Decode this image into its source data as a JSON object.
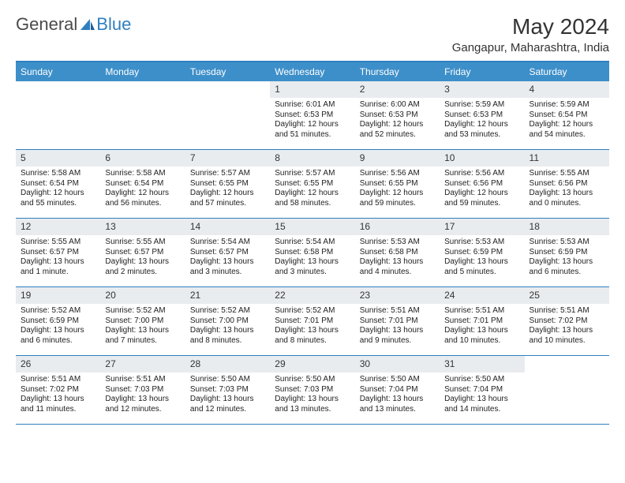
{
  "brand": {
    "general": "General",
    "blue": "Blue",
    "sail_color": "#2f7fbf"
  },
  "header": {
    "month_title": "May 2024",
    "location": "Gangapur, Maharashtra, India"
  },
  "colors": {
    "header_bar": "#3d8fc9",
    "border": "#2f7fbf",
    "daynum_bg": "#e9ecef",
    "text": "#222222",
    "title_text": "#333333",
    "background": "#ffffff"
  },
  "dow": [
    "Sunday",
    "Monday",
    "Tuesday",
    "Wednesday",
    "Thursday",
    "Friday",
    "Saturday"
  ],
  "weeks": [
    [
      {
        "day": "",
        "sunrise": "",
        "sunset": "",
        "daylight1": "",
        "daylight2": ""
      },
      {
        "day": "",
        "sunrise": "",
        "sunset": "",
        "daylight1": "",
        "daylight2": ""
      },
      {
        "day": "",
        "sunrise": "",
        "sunset": "",
        "daylight1": "",
        "daylight2": ""
      },
      {
        "day": "1",
        "sunrise": "Sunrise: 6:01 AM",
        "sunset": "Sunset: 6:53 PM",
        "daylight1": "Daylight: 12 hours",
        "daylight2": "and 51 minutes."
      },
      {
        "day": "2",
        "sunrise": "Sunrise: 6:00 AM",
        "sunset": "Sunset: 6:53 PM",
        "daylight1": "Daylight: 12 hours",
        "daylight2": "and 52 minutes."
      },
      {
        "day": "3",
        "sunrise": "Sunrise: 5:59 AM",
        "sunset": "Sunset: 6:53 PM",
        "daylight1": "Daylight: 12 hours",
        "daylight2": "and 53 minutes."
      },
      {
        "day": "4",
        "sunrise": "Sunrise: 5:59 AM",
        "sunset": "Sunset: 6:54 PM",
        "daylight1": "Daylight: 12 hours",
        "daylight2": "and 54 minutes."
      }
    ],
    [
      {
        "day": "5",
        "sunrise": "Sunrise: 5:58 AM",
        "sunset": "Sunset: 6:54 PM",
        "daylight1": "Daylight: 12 hours",
        "daylight2": "and 55 minutes."
      },
      {
        "day": "6",
        "sunrise": "Sunrise: 5:58 AM",
        "sunset": "Sunset: 6:54 PM",
        "daylight1": "Daylight: 12 hours",
        "daylight2": "and 56 minutes."
      },
      {
        "day": "7",
        "sunrise": "Sunrise: 5:57 AM",
        "sunset": "Sunset: 6:55 PM",
        "daylight1": "Daylight: 12 hours",
        "daylight2": "and 57 minutes."
      },
      {
        "day": "8",
        "sunrise": "Sunrise: 5:57 AM",
        "sunset": "Sunset: 6:55 PM",
        "daylight1": "Daylight: 12 hours",
        "daylight2": "and 58 minutes."
      },
      {
        "day": "9",
        "sunrise": "Sunrise: 5:56 AM",
        "sunset": "Sunset: 6:55 PM",
        "daylight1": "Daylight: 12 hours",
        "daylight2": "and 59 minutes."
      },
      {
        "day": "10",
        "sunrise": "Sunrise: 5:56 AM",
        "sunset": "Sunset: 6:56 PM",
        "daylight1": "Daylight: 12 hours",
        "daylight2": "and 59 minutes."
      },
      {
        "day": "11",
        "sunrise": "Sunrise: 5:55 AM",
        "sunset": "Sunset: 6:56 PM",
        "daylight1": "Daylight: 13 hours",
        "daylight2": "and 0 minutes."
      }
    ],
    [
      {
        "day": "12",
        "sunrise": "Sunrise: 5:55 AM",
        "sunset": "Sunset: 6:57 PM",
        "daylight1": "Daylight: 13 hours",
        "daylight2": "and 1 minute."
      },
      {
        "day": "13",
        "sunrise": "Sunrise: 5:55 AM",
        "sunset": "Sunset: 6:57 PM",
        "daylight1": "Daylight: 13 hours",
        "daylight2": "and 2 minutes."
      },
      {
        "day": "14",
        "sunrise": "Sunrise: 5:54 AM",
        "sunset": "Sunset: 6:57 PM",
        "daylight1": "Daylight: 13 hours",
        "daylight2": "and 3 minutes."
      },
      {
        "day": "15",
        "sunrise": "Sunrise: 5:54 AM",
        "sunset": "Sunset: 6:58 PM",
        "daylight1": "Daylight: 13 hours",
        "daylight2": "and 3 minutes."
      },
      {
        "day": "16",
        "sunrise": "Sunrise: 5:53 AM",
        "sunset": "Sunset: 6:58 PM",
        "daylight1": "Daylight: 13 hours",
        "daylight2": "and 4 minutes."
      },
      {
        "day": "17",
        "sunrise": "Sunrise: 5:53 AM",
        "sunset": "Sunset: 6:59 PM",
        "daylight1": "Daylight: 13 hours",
        "daylight2": "and 5 minutes."
      },
      {
        "day": "18",
        "sunrise": "Sunrise: 5:53 AM",
        "sunset": "Sunset: 6:59 PM",
        "daylight1": "Daylight: 13 hours",
        "daylight2": "and 6 minutes."
      }
    ],
    [
      {
        "day": "19",
        "sunrise": "Sunrise: 5:52 AM",
        "sunset": "Sunset: 6:59 PM",
        "daylight1": "Daylight: 13 hours",
        "daylight2": "and 6 minutes."
      },
      {
        "day": "20",
        "sunrise": "Sunrise: 5:52 AM",
        "sunset": "Sunset: 7:00 PM",
        "daylight1": "Daylight: 13 hours",
        "daylight2": "and 7 minutes."
      },
      {
        "day": "21",
        "sunrise": "Sunrise: 5:52 AM",
        "sunset": "Sunset: 7:00 PM",
        "daylight1": "Daylight: 13 hours",
        "daylight2": "and 8 minutes."
      },
      {
        "day": "22",
        "sunrise": "Sunrise: 5:52 AM",
        "sunset": "Sunset: 7:01 PM",
        "daylight1": "Daylight: 13 hours",
        "daylight2": "and 8 minutes."
      },
      {
        "day": "23",
        "sunrise": "Sunrise: 5:51 AM",
        "sunset": "Sunset: 7:01 PM",
        "daylight1": "Daylight: 13 hours",
        "daylight2": "and 9 minutes."
      },
      {
        "day": "24",
        "sunrise": "Sunrise: 5:51 AM",
        "sunset": "Sunset: 7:01 PM",
        "daylight1": "Daylight: 13 hours",
        "daylight2": "and 10 minutes."
      },
      {
        "day": "25",
        "sunrise": "Sunrise: 5:51 AM",
        "sunset": "Sunset: 7:02 PM",
        "daylight1": "Daylight: 13 hours",
        "daylight2": "and 10 minutes."
      }
    ],
    [
      {
        "day": "26",
        "sunrise": "Sunrise: 5:51 AM",
        "sunset": "Sunset: 7:02 PM",
        "daylight1": "Daylight: 13 hours",
        "daylight2": "and 11 minutes."
      },
      {
        "day": "27",
        "sunrise": "Sunrise: 5:51 AM",
        "sunset": "Sunset: 7:03 PM",
        "daylight1": "Daylight: 13 hours",
        "daylight2": "and 12 minutes."
      },
      {
        "day": "28",
        "sunrise": "Sunrise: 5:50 AM",
        "sunset": "Sunset: 7:03 PM",
        "daylight1": "Daylight: 13 hours",
        "daylight2": "and 12 minutes."
      },
      {
        "day": "29",
        "sunrise": "Sunrise: 5:50 AM",
        "sunset": "Sunset: 7:03 PM",
        "daylight1": "Daylight: 13 hours",
        "daylight2": "and 13 minutes."
      },
      {
        "day": "30",
        "sunrise": "Sunrise: 5:50 AM",
        "sunset": "Sunset: 7:04 PM",
        "daylight1": "Daylight: 13 hours",
        "daylight2": "and 13 minutes."
      },
      {
        "day": "31",
        "sunrise": "Sunrise: 5:50 AM",
        "sunset": "Sunset: 7:04 PM",
        "daylight1": "Daylight: 13 hours",
        "daylight2": "and 14 minutes."
      },
      {
        "day": "",
        "sunrise": "",
        "sunset": "",
        "daylight1": "",
        "daylight2": ""
      }
    ]
  ]
}
